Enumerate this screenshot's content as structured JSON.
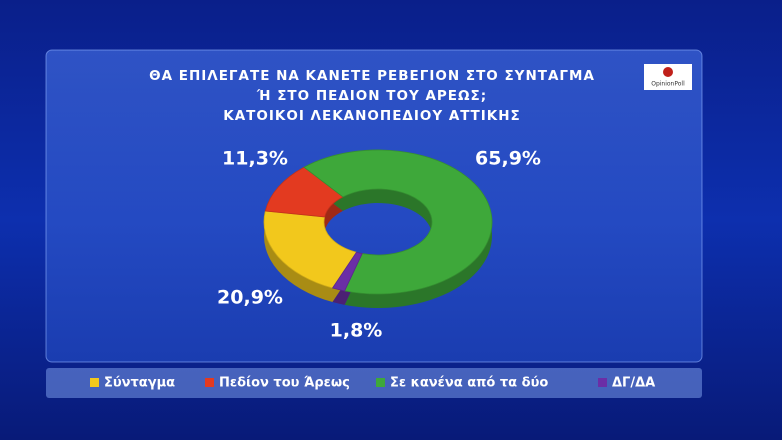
{
  "chart_data": {
    "type": "donut",
    "title": [
      "ΘΑ ΕΠΙΛΕΓΑΤΕ ΝΑ ΚΑΝΕΤΕ ΡΕΒΕΓΙΟΝ ΣΤΟ ΣΥΝΤΑΓΜΑ",
      "Ή ΣΤΟ ΠΕΔΙΟΝ ΤΟΥ ΑΡΕΩΣ;",
      "ΚΑΤΟΙΚΟΙ ΛΕΚΑΝΟΠΕΔΙΟΥ ΑΤΤΙΚΗΣ"
    ],
    "logo": "OpinionPoll",
    "categories": [
      "Σύνταγμα",
      "Πεδίον του Άρεως",
      "Σε κανένα από τα δύο",
      "ΔΓ/ΔΑ"
    ],
    "values": [
      20.9,
      11.3,
      65.9,
      1.8
    ],
    "value_labels": [
      "20,9%",
      "11,3%",
      "65,9%",
      "1,8%"
    ],
    "colors": [
      "#f2c81c",
      "#e33a20",
      "#3ea83a",
      "#6b2ea6"
    ],
    "legend": "bottom"
  }
}
